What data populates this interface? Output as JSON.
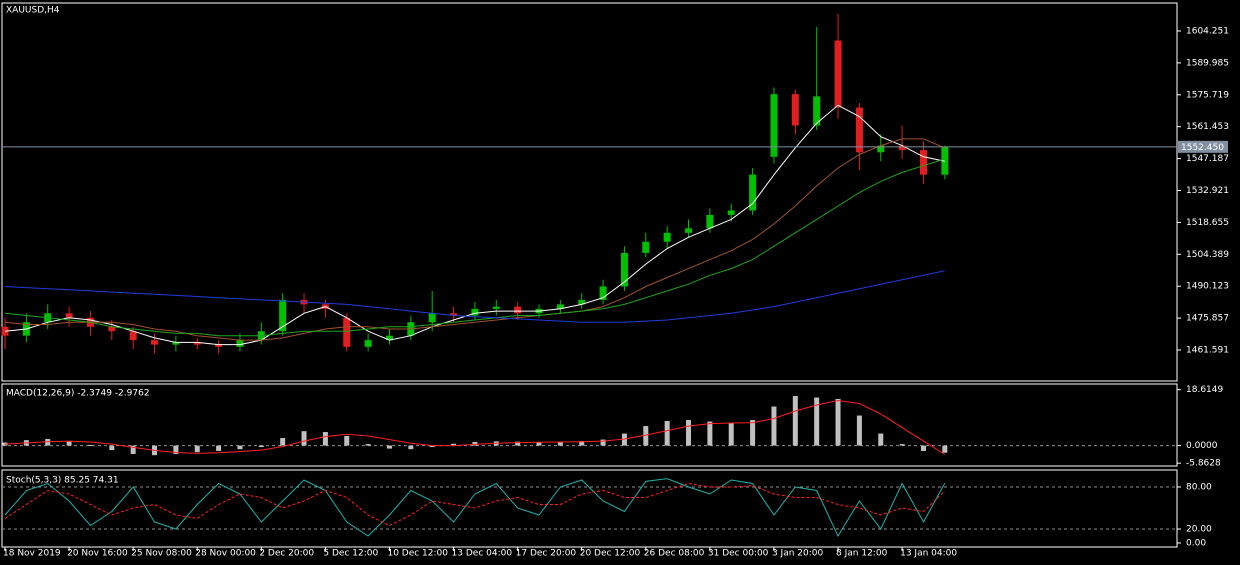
{
  "chart_data": [
    {
      "type": "candlestick",
      "title": "XAUUSD,H4",
      "open": [
        1472,
        1468,
        1474,
        1478,
        1476,
        1472,
        1470,
        1466,
        1464,
        1465,
        1464,
        1463,
        1466,
        1470,
        1484,
        1482,
        1476,
        1463,
        1466,
        1468,
        1474,
        1478,
        1477,
        1480,
        1481,
        1478,
        1480,
        1482,
        1484,
        1490,
        1505,
        1510,
        1514,
        1516,
        1522,
        1524,
        1548,
        1576,
        1562,
        1600,
        1570,
        1550,
        1553,
        1551,
        1540
      ],
      "high": [
        1476,
        1478,
        1482,
        1481,
        1479,
        1475,
        1472,
        1469,
        1468,
        1467,
        1466,
        1469,
        1474,
        1487,
        1487,
        1484,
        1478,
        1469,
        1471,
        1477,
        1488,
        1481,
        1483,
        1484,
        1483,
        1482,
        1484,
        1487,
        1493,
        1508,
        1514,
        1517,
        1520,
        1525,
        1527,
        1543,
        1579,
        1578,
        1606,
        1612,
        1572,
        1558,
        1562,
        1555,
        1553
      ],
      "low": [
        1462,
        1465,
        1471,
        1472,
        1468,
        1466,
        1462,
        1460,
        1461,
        1462,
        1460,
        1461,
        1464,
        1468,
        1478,
        1476,
        1461,
        1461,
        1464,
        1466,
        1470,
        1474,
        1475,
        1477,
        1475,
        1476,
        1478,
        1480,
        1482,
        1488,
        1503,
        1507,
        1512,
        1514,
        1519,
        1522,
        1545,
        1558,
        1560,
        1565,
        1542,
        1546,
        1547,
        1536,
        1538
      ],
      "close": [
        1468,
        1474,
        1478,
        1476,
        1472,
        1470,
        1466,
        1464,
        1465,
        1464,
        1463,
        1466,
        1470,
        1484,
        1482,
        1480,
        1463,
        1466,
        1468,
        1474,
        1478,
        1477,
        1480,
        1481,
        1478,
        1480,
        1482,
        1484,
        1490,
        1505,
        1510,
        1514,
        1516,
        1522,
        1524,
        1540,
        1576,
        1562,
        1575,
        1570,
        1550,
        1553,
        1551,
        1540,
        1552.45
      ],
      "up_color": "#00c000",
      "down_color": "#e02020",
      "lines": [
        {
          "color": "#ffffff",
          "values": [
            1470,
            1471,
            1474,
            1476,
            1475,
            1473,
            1470,
            1467,
            1465,
            1465,
            1464,
            1464,
            1466,
            1472,
            1478,
            1481,
            1476,
            1470,
            1466,
            1468,
            1472,
            1475,
            1478,
            1479,
            1479,
            1479,
            1480,
            1482,
            1485,
            1492,
            1500,
            1507,
            1512,
            1516,
            1520,
            1527,
            1540,
            1552,
            1563,
            1571,
            1566,
            1557,
            1553,
            1548,
            1546
          ]
        },
        {
          "color": "#a0522d",
          "values": [
            1474,
            1473,
            1473,
            1474,
            1474,
            1474,
            1473,
            1471,
            1470,
            1468,
            1467,
            1466,
            1466,
            1467,
            1469,
            1471,
            1472,
            1472,
            1471,
            1471,
            1472,
            1473,
            1474,
            1475,
            1476,
            1477,
            1478,
            1479,
            1481,
            1485,
            1490,
            1494,
            1498,
            1502,
            1506,
            1511,
            1518,
            1526,
            1535,
            1543,
            1549,
            1553,
            1556,
            1556,
            1552
          ]
        },
        {
          "color": "#1ea51e",
          "values": [
            1478,
            1477,
            1476,
            1475,
            1474,
            1472,
            1471,
            1470,
            1469,
            1469,
            1468,
            1468,
            1468,
            1469,
            1470,
            1470,
            1470,
            1471,
            1472,
            1472,
            1473,
            1474,
            1475,
            1476,
            1477,
            1477,
            1478,
            1479,
            1480,
            1482,
            1485,
            1488,
            1491,
            1495,
            1498,
            1502,
            1508,
            1514,
            1520,
            1526,
            1532,
            1537,
            1541,
            1544,
            1547
          ]
        },
        {
          "color": "#1e3cdc",
          "values": [
            1490,
            1489.5,
            1489,
            1488.5,
            1488,
            1487.5,
            1487,
            1486.5,
            1486,
            1485.5,
            1485,
            1484.5,
            1484,
            1483.5,
            1483,
            1482.5,
            1482,
            1481,
            1480,
            1479,
            1478,
            1477,
            1476.5,
            1476,
            1475.5,
            1475,
            1474.5,
            1474,
            1474,
            1474,
            1474.5,
            1475,
            1476,
            1477,
            1478,
            1479.5,
            1481,
            1483,
            1485,
            1487,
            1489,
            1491,
            1493,
            1495,
            1497
          ]
        }
      ],
      "current_price": {
        "value": 1552.45,
        "label": "1552.450"
      },
      "ylim": [
        1447.73,
        1616.77
      ],
      "yticks": [
        1604.251,
        1589.985,
        1575.719,
        1561.453,
        1547.187,
        1532.921,
        1518.655,
        1504.389,
        1490.123,
        1475.857,
        1461.591
      ]
    },
    {
      "type": "macd",
      "title": "MACD(12,26,9) -2.3749 -2.9762",
      "color": "#c0c0c0",
      "values": [
        1.0,
        1.8,
        2.2,
        1.5,
        0.2,
        -1.5,
        -2.8,
        -3.2,
        -2.8,
        -2.2,
        -1.8,
        -1.2,
        -0.5,
        2.5,
        4.8,
        4.5,
        3.2,
        0.5,
        -1.0,
        -1.2,
        -0.5,
        0.6,
        1.2,
        1.4,
        1.3,
        1.2,
        1.3,
        1.5,
        2.0,
        4.0,
        6.5,
        8.2,
        8.5,
        8.0,
        7.5,
        8.5,
        13.0,
        16.5,
        16.0,
        15.5,
        10.0,
        4.0,
        0.5,
        -1.8,
        -2.3749
      ],
      "lines": [
        {
          "color": "#ff2020",
          "values": [
            0.5,
            0.9,
            1.3,
            1.5,
            1.2,
            0.5,
            -0.6,
            -1.6,
            -2.3,
            -2.6,
            -2.4,
            -2.0,
            -1.5,
            -0.3,
            1.5,
            3.0,
            3.8,
            3.2,
            2.0,
            0.8,
            0.0,
            0.0,
            0.4,
            0.8,
            1.0,
            1.1,
            1.2,
            1.3,
            1.5,
            2.2,
            3.5,
            5.0,
            6.5,
            7.3,
            7.5,
            7.6,
            9.0,
            11.5,
            13.5,
            15.0,
            14.0,
            10.5,
            6.0,
            1.5,
            -2.9762
          ]
        }
      ],
      "levels": [
        0
      ],
      "ylim": [
        -6.8,
        20.5
      ],
      "yticks": [
        18.6149,
        {
          "value": 0,
          "label": "0.0000"
        },
        -5.8628
      ]
    },
    {
      "type": "stochastic",
      "title": "Stoch(5,3,3) 85.25 74.31",
      "categories": [
        "18 Nov 2019",
        null,
        null,
        "20 Nov 16:00",
        null,
        null,
        "25 Nov 08:00",
        null,
        null,
        "28 Nov 00:00",
        null,
        null,
        "2 Dec 20:00",
        null,
        null,
        "5 Dec 12:00",
        null,
        null,
        "10 Dec 12:00",
        null,
        null,
        "13 Dec 04:00",
        null,
        null,
        "17 Dec 20:00",
        null,
        null,
        "20 Dec 12:00",
        null,
        null,
        "26 Dec 08:00",
        null,
        null,
        "31 Dec 00:00",
        null,
        null,
        "3 Jan 20:00",
        null,
        null,
        "8 Jan 12:00",
        null,
        null,
        "13 Jan 04:00",
        null,
        null
      ],
      "lines": [
        {
          "color": "#20b2aa",
          "dashed": false,
          "values": [
            40,
            75,
            85,
            60,
            25,
            45,
            80,
            30,
            20,
            55,
            85,
            70,
            30,
            60,
            90,
            75,
            30,
            10,
            40,
            75,
            60,
            30,
            70,
            85,
            50,
            40,
            80,
            90,
            60,
            45,
            88,
            92,
            80,
            70,
            90,
            85,
            40,
            80,
            75,
            10,
            60,
            20,
            85,
            30,
            85.25
          ]
        },
        {
          "color": "#ff2020",
          "dashed": true,
          "values": [
            35,
            55,
            75,
            70,
            55,
            40,
            50,
            55,
            40,
            35,
            55,
            70,
            65,
            50,
            60,
            75,
            65,
            40,
            25,
            40,
            60,
            55,
            50,
            60,
            65,
            55,
            55,
            70,
            75,
            65,
            65,
            75,
            85,
            80,
            80,
            82,
            70,
            65,
            65,
            55,
            50,
            40,
            50,
            45,
            74.31
          ]
        }
      ],
      "levels": [
        80,
        20
      ],
      "ylim": [
        -5.7,
        104.3
      ],
      "yticks": [
        {
          "value": 80,
          "label": "80.00"
        },
        {
          "value": 20,
          "label": "20.00"
        },
        {
          "value": 0,
          "label": "0.00"
        }
      ]
    }
  ]
}
